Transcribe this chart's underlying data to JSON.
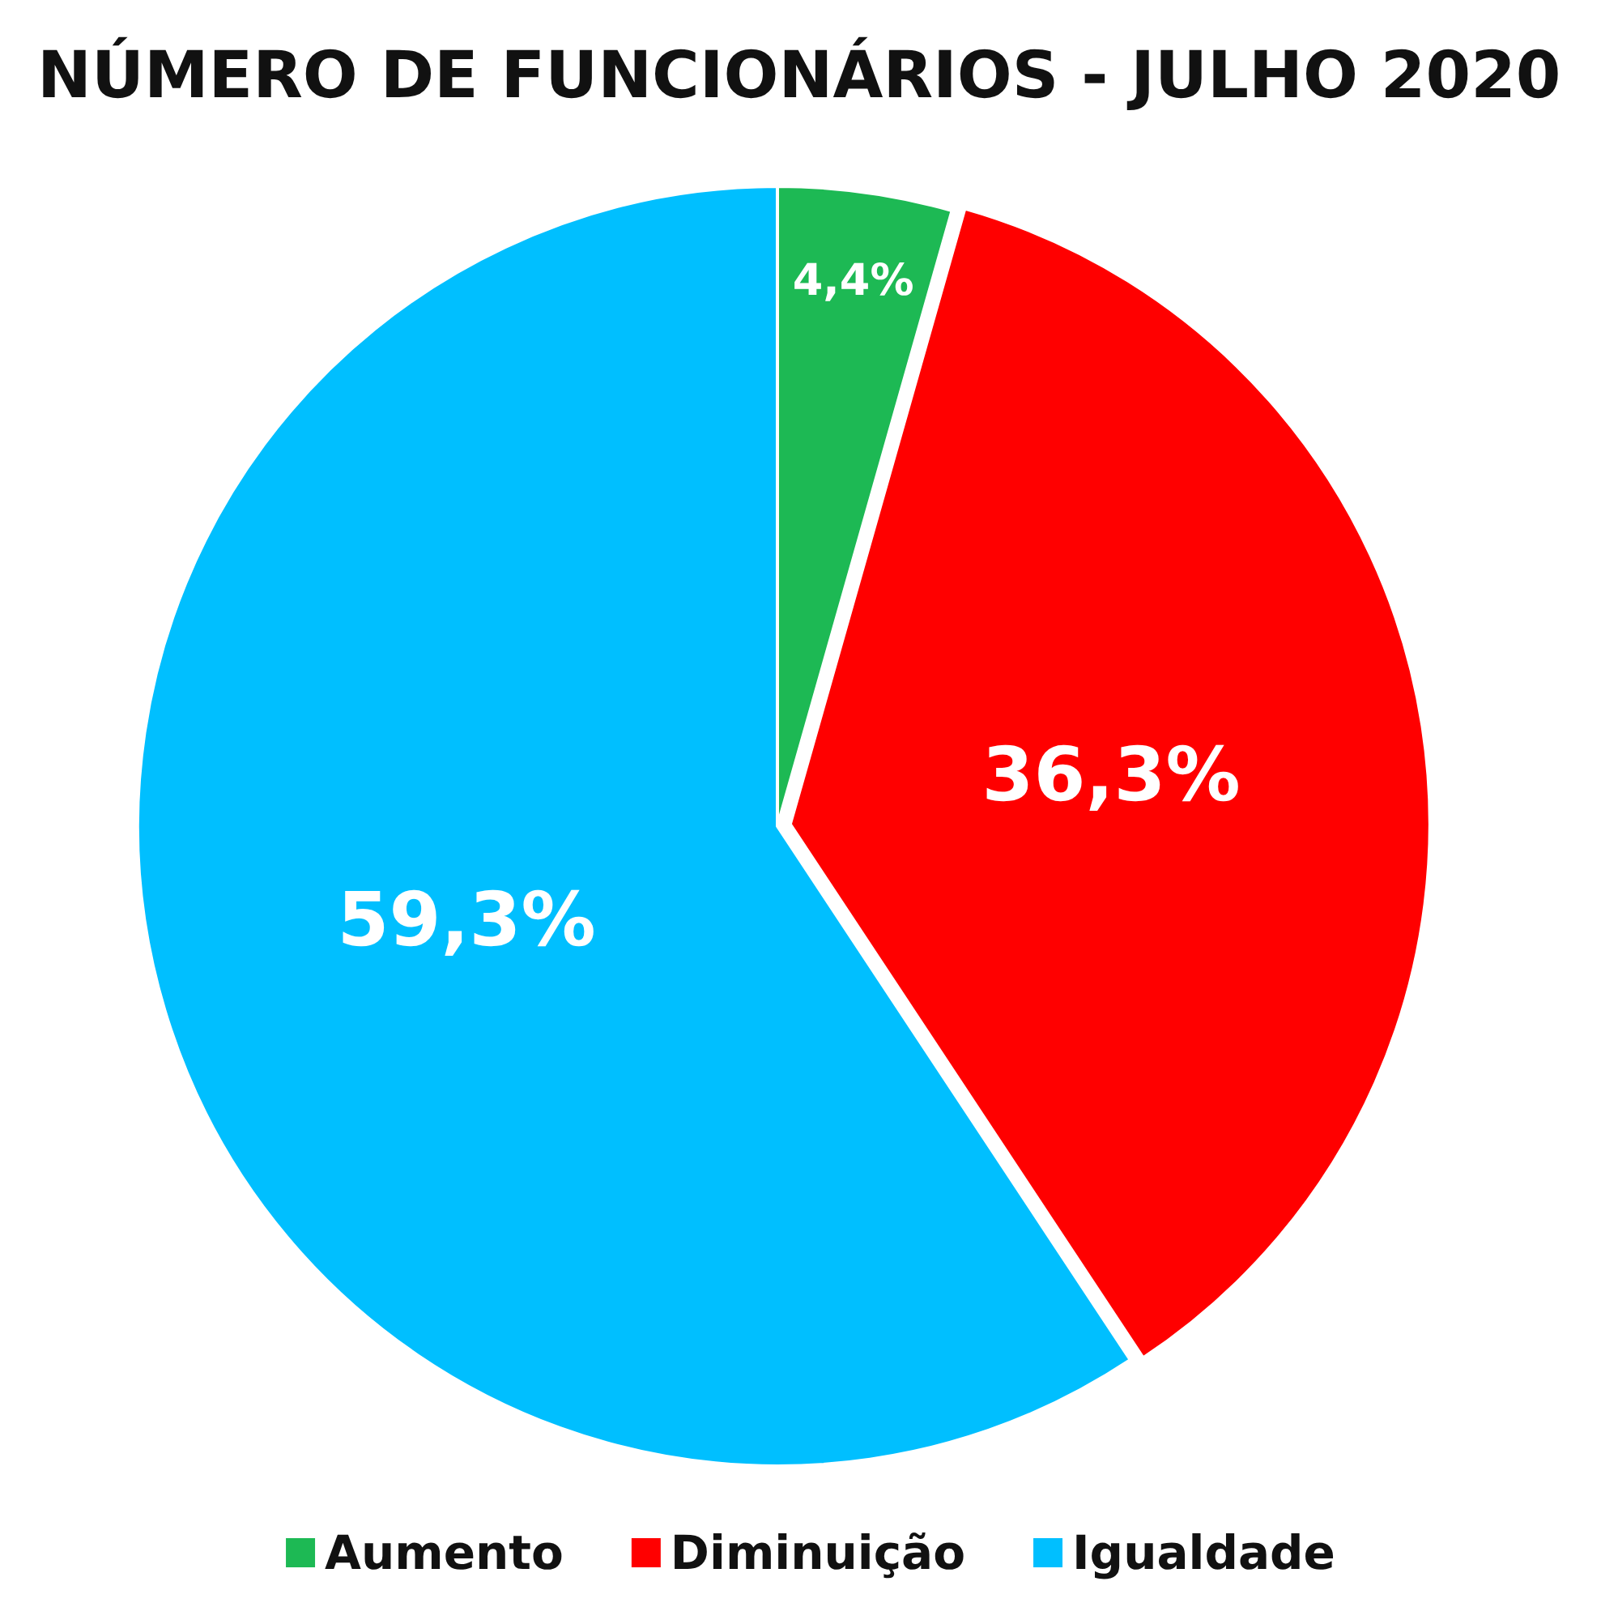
{
  "chart_data": {
    "type": "pie",
    "title": "NÚMERO DE FUNCIONÁRIOS - JULHO 2020",
    "categories": [
      "Aumento",
      "Diminuição",
      "Igualdade"
    ],
    "values": [
      4.4,
      36.3,
      59.3
    ],
    "colors": [
      "#1db954",
      "#ff0000",
      "#00bfff"
    ],
    "value_labels": [
      "4,4%",
      "36,3%",
      "59,3%"
    ],
    "legend": "bottom"
  }
}
